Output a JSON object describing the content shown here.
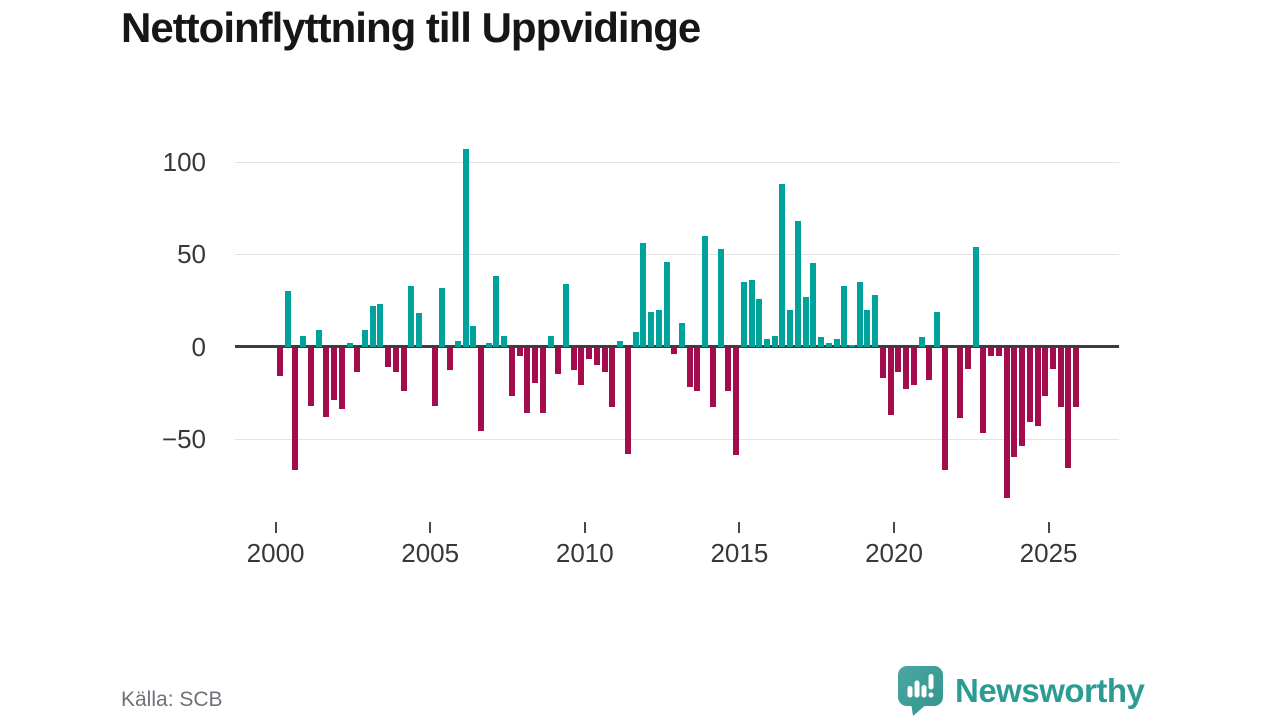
{
  "header": {
    "title": "Nettoinflyttning till Uppvidinge"
  },
  "footer": {
    "source_label": "Källa: SCB",
    "logo_text": "Newsworthy",
    "logo_icon": "speech-bubble-bar-chart-exclamation"
  },
  "colors": {
    "positive_bar": "#00a39c",
    "negative_bar": "#a30d4e",
    "zero_axis": "#3d3d3d",
    "gridline": "#e4e4e4",
    "axis_text": "#383838",
    "title_text": "#161616",
    "source_text": "#6e7278",
    "logo_teal": "#2c9b93"
  },
  "chart_data": {
    "type": "bar",
    "title": "Nettoinflyttning till Uppvidinge",
    "frequency": "quarterly",
    "x_start": "2000 Q1",
    "x_end": "2025 Q4",
    "start_year": 2000,
    "ylim": [
      -85,
      112
    ],
    "yticks": [
      100,
      50,
      0,
      -50
    ],
    "xticks": [
      2000,
      2005,
      2010,
      2015,
      2020,
      2025
    ],
    "grid": true,
    "legend": "none",
    "values": [
      -15,
      30,
      -66,
      6,
      -31,
      9,
      -37,
      -28,
      -33,
      2,
      -13,
      9,
      22,
      23,
      -10,
      -13,
      -23,
      33,
      18,
      0,
      -31,
      32,
      -12,
      3,
      107,
      11,
      -45,
      2,
      38,
      6,
      -26,
      -4,
      -35,
      -19,
      -35,
      6,
      -14,
      34,
      -12,
      -20,
      -6,
      -9,
      -13,
      -32,
      3,
      -57,
      8,
      56,
      19,
      20,
      46,
      -3,
      13,
      -21,
      -23,
      60,
      -32,
      53,
      -23,
      -58,
      35,
      36,
      26,
      4,
      6,
      88,
      20,
      68,
      27,
      45,
      5,
      2,
      4,
      33,
      1,
      35,
      20,
      28,
      -16,
      -36,
      -13,
      -22,
      -20,
      5,
      -17,
      19,
      -66,
      0,
      -38,
      -11,
      54,
      -46,
      -4,
      -4,
      -81,
      -59,
      -53,
      -40,
      -42,
      -26,
      -11,
      -32,
      -65,
      -32
    ]
  }
}
